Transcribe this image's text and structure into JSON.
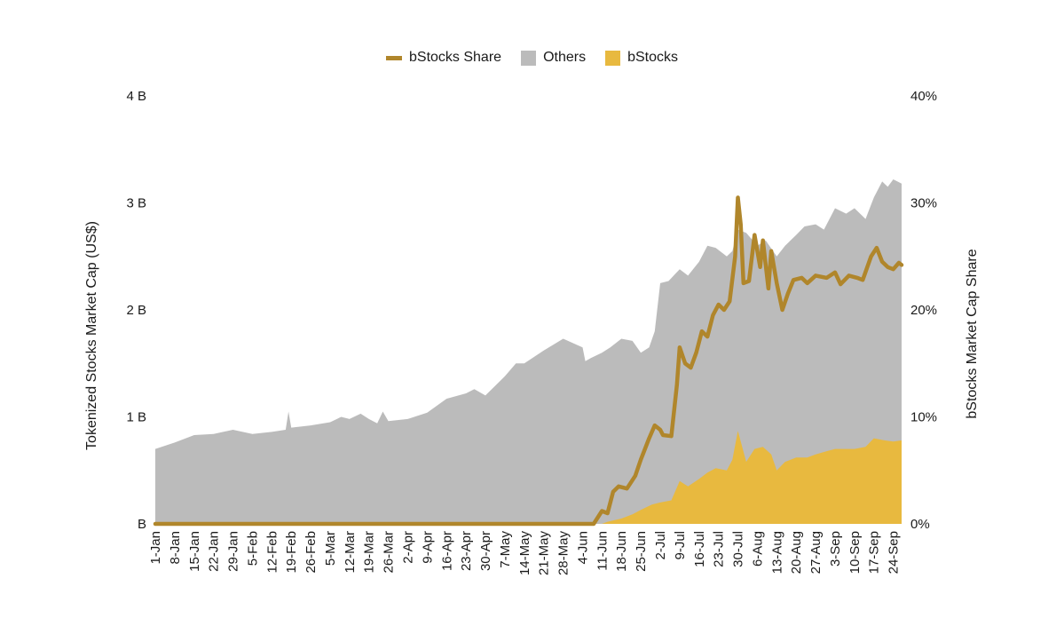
{
  "chart_data": {
    "type": "area",
    "title": "",
    "legend_position": "top-center",
    "grid": false,
    "ylabel_left": "Tokenized Stocks Market Cap (US$)",
    "ylabel_right": "bStocks Market Cap Share",
    "ylim_left": [
      0,
      4
    ],
    "ylim_right": [
      0,
      40
    ],
    "yticks_left": [
      "B",
      "1 B",
      "2 B",
      "3 B",
      "4 B"
    ],
    "yticks_right": [
      "0%",
      "10%",
      "20%",
      "30%",
      "40%"
    ],
    "x_dates": [
      "1-Jan",
      "8-Jan",
      "15-Jan",
      "22-Jan",
      "29-Jan",
      "5-Feb",
      "12-Feb",
      "19-Feb",
      "26-Feb",
      "5-Mar",
      "12-Mar",
      "19-Mar",
      "26-Mar",
      "2-Apr",
      "9-Apr",
      "16-Apr",
      "23-Apr",
      "30-Apr",
      "7-May",
      "14-May",
      "21-May",
      "28-May",
      "4-Jun",
      "11-Jun",
      "18-Jun",
      "25-Jun",
      "2-Jul",
      "9-Jul",
      "16-Jul",
      "23-Jul",
      "30-Jul",
      "6-Aug",
      "13-Aug",
      "20-Aug",
      "27-Aug",
      "3-Sep",
      "10-Sep",
      "17-Sep",
      "24-Sep"
    ],
    "x_last_date": "27-Sep",
    "series": [
      {
        "name": "Others",
        "kind": "area",
        "axis": "left",
        "unit": "B US$",
        "points": [
          [
            "1-Jan",
            0.7
          ],
          [
            "8-Jan",
            0.76
          ],
          [
            "15-Jan",
            0.83
          ],
          [
            "22-Jan",
            0.84
          ],
          [
            "29-Jan",
            0.88
          ],
          [
            "5-Feb",
            0.84
          ],
          [
            "12-Feb",
            0.86
          ],
          [
            "17-Feb",
            0.88
          ],
          [
            "18-Feb",
            1.05
          ],
          [
            "19-Feb",
            0.9
          ],
          [
            "26-Feb",
            0.92
          ],
          [
            "5-Mar",
            0.95
          ],
          [
            "9-Mar",
            1.0
          ],
          [
            "12-Mar",
            0.98
          ],
          [
            "16-Mar",
            1.03
          ],
          [
            "19-Mar",
            0.98
          ],
          [
            "22-Mar",
            0.94
          ],
          [
            "24-Mar",
            1.05
          ],
          [
            "26-Mar",
            0.96
          ],
          [
            "2-Apr",
            0.98
          ],
          [
            "9-Apr",
            1.04
          ],
          [
            "16-Apr",
            1.17
          ],
          [
            "23-Apr",
            1.22
          ],
          [
            "26-Apr",
            1.26
          ],
          [
            "30-Apr",
            1.2
          ],
          [
            "7-May",
            1.38
          ],
          [
            "11-May",
            1.5
          ],
          [
            "14-May",
            1.5
          ],
          [
            "21-May",
            1.62
          ],
          [
            "28-May",
            1.73
          ],
          [
            "4-Jun",
            1.65
          ],
          [
            "5-Jun",
            1.52
          ],
          [
            "7-Jun",
            1.55
          ],
          [
            "11-Jun",
            1.6
          ],
          [
            "14-Jun",
            1.65
          ],
          [
            "18-Jun",
            1.73
          ],
          [
            "22-Jun",
            1.71
          ],
          [
            "25-Jun",
            1.6
          ],
          [
            "28-Jun",
            1.65
          ],
          [
            "30-Jun",
            1.8
          ],
          [
            "2-Jul",
            2.25
          ],
          [
            "5-Jul",
            2.27
          ],
          [
            "9-Jul",
            2.38
          ],
          [
            "12-Jul",
            2.32
          ],
          [
            "16-Jul",
            2.45
          ],
          [
            "19-Jul",
            2.6
          ],
          [
            "22-Jul",
            2.58
          ],
          [
            "26-Jul",
            2.5
          ],
          [
            "28-Jul",
            2.55
          ],
          [
            "30-Jul",
            2.75
          ],
          [
            "2-Aug",
            2.72
          ],
          [
            "6-Aug",
            2.6
          ],
          [
            "9-Aug",
            2.65
          ],
          [
            "13-Aug",
            2.5
          ],
          [
            "16-Aug",
            2.6
          ],
          [
            "20-Aug",
            2.7
          ],
          [
            "23-Aug",
            2.78
          ],
          [
            "27-Aug",
            2.8
          ],
          [
            "30-Aug",
            2.75
          ],
          [
            "3-Sep",
            2.95
          ],
          [
            "7-Sep",
            2.9
          ],
          [
            "10-Sep",
            2.95
          ],
          [
            "14-Sep",
            2.85
          ],
          [
            "17-Sep",
            3.05
          ],
          [
            "20-Sep",
            3.2
          ],
          [
            "22-Sep",
            3.15
          ],
          [
            "24-Sep",
            3.22
          ],
          [
            "27-Sep",
            3.18
          ]
        ]
      },
      {
        "name": "bStocks",
        "kind": "area",
        "axis": "left",
        "unit": "B US$",
        "points": [
          [
            "1-Jan",
            0.0
          ],
          [
            "4-Jun",
            0.0
          ],
          [
            "11-Jun",
            0.0
          ],
          [
            "13-Jun",
            0.02
          ],
          [
            "18-Jun",
            0.05
          ],
          [
            "22-Jun",
            0.09
          ],
          [
            "25-Jun",
            0.13
          ],
          [
            "29-Jun",
            0.18
          ],
          [
            "2-Jul",
            0.2
          ],
          [
            "6-Jul",
            0.22
          ],
          [
            "9-Jul",
            0.4
          ],
          [
            "12-Jul",
            0.35
          ],
          [
            "16-Jul",
            0.42
          ],
          [
            "19-Jul",
            0.48
          ],
          [
            "22-Jul",
            0.52
          ],
          [
            "26-Jul",
            0.5
          ],
          [
            "28-Jul",
            0.6
          ],
          [
            "30-Jul",
            0.87
          ],
          [
            "2-Aug",
            0.58
          ],
          [
            "5-Aug",
            0.7
          ],
          [
            "8-Aug",
            0.72
          ],
          [
            "11-Aug",
            0.65
          ],
          [
            "13-Aug",
            0.5
          ],
          [
            "16-Aug",
            0.58
          ],
          [
            "20-Aug",
            0.62
          ],
          [
            "24-Aug",
            0.62
          ],
          [
            "27-Aug",
            0.65
          ],
          [
            "31-Aug",
            0.68
          ],
          [
            "3-Sep",
            0.7
          ],
          [
            "7-Sep",
            0.7
          ],
          [
            "10-Sep",
            0.7
          ],
          [
            "14-Sep",
            0.72
          ],
          [
            "17-Sep",
            0.8
          ],
          [
            "21-Sep",
            0.78
          ],
          [
            "24-Sep",
            0.77
          ],
          [
            "27-Sep",
            0.78
          ]
        ]
      },
      {
        "name": "bStocks Share",
        "kind": "line",
        "axis": "right",
        "unit": "%",
        "points": [
          [
            "1-Jan",
            0.0
          ],
          [
            "8-Jun",
            0.0
          ],
          [
            "11-Jun",
            1.2
          ],
          [
            "13-Jun",
            1.0
          ],
          [
            "15-Jun",
            3.0
          ],
          [
            "17-Jun",
            3.5
          ],
          [
            "20-Jun",
            3.3
          ],
          [
            "23-Jun",
            4.5
          ],
          [
            "25-Jun",
            6.0
          ],
          [
            "28-Jun",
            8.0
          ],
          [
            "30-Jun",
            9.2
          ],
          [
            "2-Jul",
            8.8
          ],
          [
            "3-Jul",
            8.3
          ],
          [
            "6-Jul",
            8.2
          ],
          [
            "8-Jul",
            13.0
          ],
          [
            "9-Jul",
            16.5
          ],
          [
            "11-Jul",
            15.0
          ],
          [
            "13-Jul",
            14.6
          ],
          [
            "15-Jul",
            16.0
          ],
          [
            "17-Jul",
            18.0
          ],
          [
            "19-Jul",
            17.5
          ],
          [
            "21-Jul",
            19.5
          ],
          [
            "23-Jul",
            20.5
          ],
          [
            "25-Jul",
            20.0
          ],
          [
            "27-Jul",
            20.8
          ],
          [
            "29-Jul",
            25.0
          ],
          [
            "30-Jul",
            30.5
          ],
          [
            "31-Jul",
            28.0
          ],
          [
            "1-Aug",
            22.5
          ],
          [
            "3-Aug",
            22.7
          ],
          [
            "5-Aug",
            27.0
          ],
          [
            "7-Aug",
            24.0
          ],
          [
            "8-Aug",
            26.5
          ],
          [
            "10-Aug",
            22.0
          ],
          [
            "11-Aug",
            25.5
          ],
          [
            "13-Aug",
            22.5
          ],
          [
            "15-Aug",
            20.0
          ],
          [
            "17-Aug",
            21.5
          ],
          [
            "19-Aug",
            22.8
          ],
          [
            "22-Aug",
            23.0
          ],
          [
            "24-Aug",
            22.5
          ],
          [
            "27-Aug",
            23.2
          ],
          [
            "31-Aug",
            23.0
          ],
          [
            "3-Sep",
            23.5
          ],
          [
            "5-Sep",
            22.4
          ],
          [
            "8-Sep",
            23.2
          ],
          [
            "11-Sep",
            23.0
          ],
          [
            "13-Sep",
            22.8
          ],
          [
            "16-Sep",
            25.0
          ],
          [
            "18-Sep",
            25.8
          ],
          [
            "20-Sep",
            24.5
          ],
          [
            "22-Sep",
            24.0
          ],
          [
            "24-Sep",
            23.8
          ],
          [
            "26-Sep",
            24.4
          ],
          [
            "27-Sep",
            24.2
          ]
        ]
      }
    ],
    "colors": {
      "Others": "#bbbbbb",
      "bStocks": "#e8b93f",
      "bStocks Share": "#b0862b",
      "text": "#1a1a1a"
    }
  },
  "legend": [
    {
      "label": "bStocks Share",
      "style": "line",
      "color": "#b0862b"
    },
    {
      "label": "Others",
      "style": "box",
      "color": "#bbbbbb"
    },
    {
      "label": "bStocks",
      "style": "box",
      "color": "#e8b93f"
    }
  ]
}
